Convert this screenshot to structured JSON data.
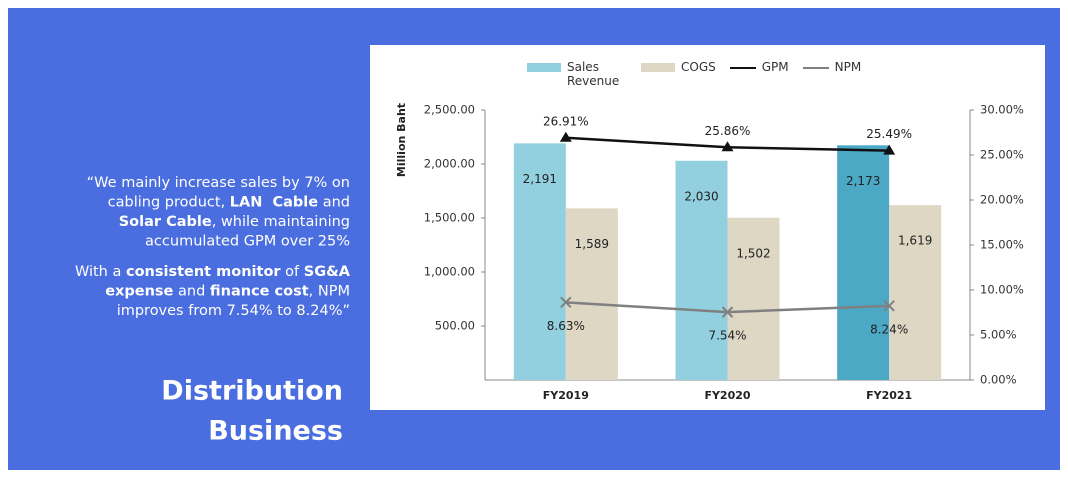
{
  "slide": {
    "quote": [
      [
        [
          {
            "text": "“We mainly increase sales by 7% on",
            "bold": false
          }
        ],
        [
          {
            "text": "cabling product, ",
            "bold": false
          },
          {
            "text": "LAN  Cable",
            "bold": true
          },
          {
            "text": " and",
            "bold": false
          }
        ],
        [
          {
            "text": "Solar Cable",
            "bold": true
          },
          {
            "text": ", while maintaining",
            "bold": false
          }
        ],
        [
          {
            "text": "accumulated GPM over 25%",
            "bold": false
          }
        ]
      ],
      [
        [
          {
            "text": "With a ",
            "bold": false
          },
          {
            "text": "consistent monitor",
            "bold": true
          },
          {
            "text": " of ",
            "bold": false
          },
          {
            "text": "SG&A",
            "bold": true
          }
        ],
        [
          {
            "text": "expense",
            "bold": true
          },
          {
            "text": " and ",
            "bold": false
          },
          {
            "text": "finance cost",
            "bold": true
          },
          {
            "text": ", NPM",
            "bold": false
          }
        ],
        [
          {
            "text": "improves from 7.54% to 8.24%”",
            "bold": false
          }
        ]
      ]
    ],
    "heading": [
      "Distribution",
      "Business"
    ]
  },
  "chart_data": {
    "type": "bar-line",
    "categories": [
      "FY2019",
      "FY2020",
      "FY2021"
    ],
    "y_label": "Million Baht",
    "ylim": [
      0,
      2500
    ],
    "yticks": [
      {
        "value": 500,
        "label": "500.00"
      },
      {
        "value": 1000,
        "label": "1,000.00"
      },
      {
        "value": 1500,
        "label": "1,500.00"
      },
      {
        "value": 2000,
        "label": "2,000.00"
      },
      {
        "value": 2500,
        "label": "2,500.00"
      }
    ],
    "y2lim": [
      0,
      30
    ],
    "y2ticks": [
      {
        "value": 0,
        "label": "0.00%"
      },
      {
        "value": 5,
        "label": "5.00%"
      },
      {
        "value": 10,
        "label": "10.00%"
      },
      {
        "value": 15,
        "label": "15.00%"
      },
      {
        "value": 20,
        "label": "20.00%"
      },
      {
        "value": 25,
        "label": "25.00%"
      },
      {
        "value": 30,
        "label": "30.00%"
      }
    ],
    "series": [
      {
        "name": "Sales Revenue",
        "type": "bar",
        "color": "#92cfdf",
        "colors": [
          "#92cfdf",
          "#92cfdf",
          "#4ba9c6"
        ],
        "values": [
          2191,
          2030,
          2173
        ],
        "value_labels": [
          "2,191",
          "2,030",
          "2,173"
        ]
      },
      {
        "name": "COGS",
        "type": "bar",
        "color": "#ddd7c4",
        "values": [
          1589,
          1502,
          1619
        ],
        "value_labels": [
          "1,589",
          "1,502",
          "1,619"
        ]
      },
      {
        "name": "GPM",
        "type": "line",
        "axis": "y2",
        "marker": "triangle",
        "color": "#111111",
        "values": [
          26.91,
          25.86,
          25.49
        ],
        "value_labels": [
          "26.91%",
          "25.86%",
          "25.49%"
        ]
      },
      {
        "name": "NPM",
        "type": "line",
        "axis": "y2",
        "marker": "x",
        "color": "#808080",
        "values": [
          8.63,
          7.54,
          8.24
        ],
        "value_labels": [
          "8.63%",
          "7.54%",
          "8.24%"
        ]
      }
    ]
  }
}
